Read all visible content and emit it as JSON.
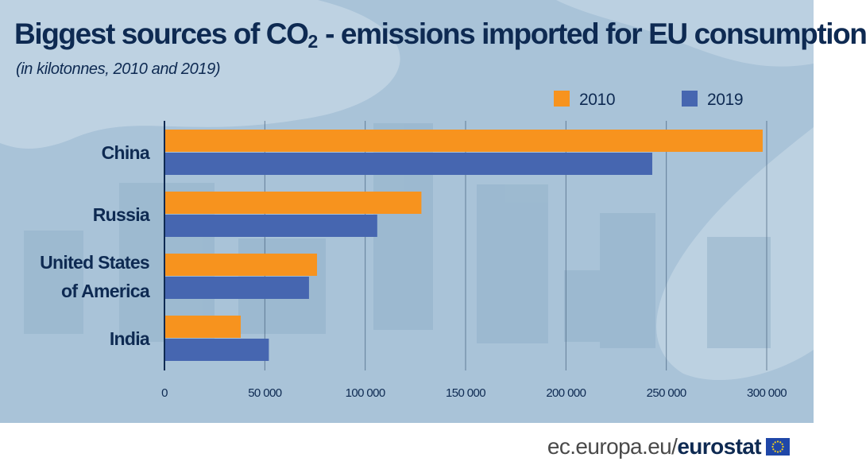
{
  "header": {
    "title_main": "Biggest sources of CO",
    "title_sub": "2",
    "title_rest": " - emissions imported for EU consumption",
    "subtitle": "(in kilotonnes, 2010 and 2019)"
  },
  "colors": {
    "series_2010": "#f7931e",
    "series_2019": "#4666b0",
    "text": "#0e2a52",
    "panel": "#a9c3d8"
  },
  "chart_data": {
    "type": "bar",
    "orientation": "horizontal",
    "title": "Biggest sources of CO2 - emissions imported for EU consumption",
    "subtitle": "(in kilotonnes, 2010 and 2019)",
    "categories": [
      "China",
      "Russia",
      "United States of America",
      "India"
    ],
    "category_lines": [
      [
        "China"
      ],
      [
        "Russia"
      ],
      [
        "United States",
        "of America"
      ],
      [
        "India"
      ]
    ],
    "series": [
      {
        "name": "2010",
        "values": [
          298000,
          128000,
          76000,
          38000
        ]
      },
      {
        "name": "2019",
        "values": [
          243000,
          106000,
          72000,
          52000
        ]
      }
    ],
    "xlim": [
      0,
      300000
    ],
    "ticks": [
      0,
      50000,
      100000,
      150000,
      200000,
      250000,
      300000
    ],
    "tick_labels": [
      "0",
      "50 000",
      "100 000",
      "150 000",
      "200 000",
      "250 000",
      "300 000"
    ],
    "grid": true,
    "legend_position": "top-right"
  },
  "footer": {
    "site": "ec.europa.eu/",
    "brand": "eurostat",
    "logo_icon": "eu-flag-icon"
  }
}
